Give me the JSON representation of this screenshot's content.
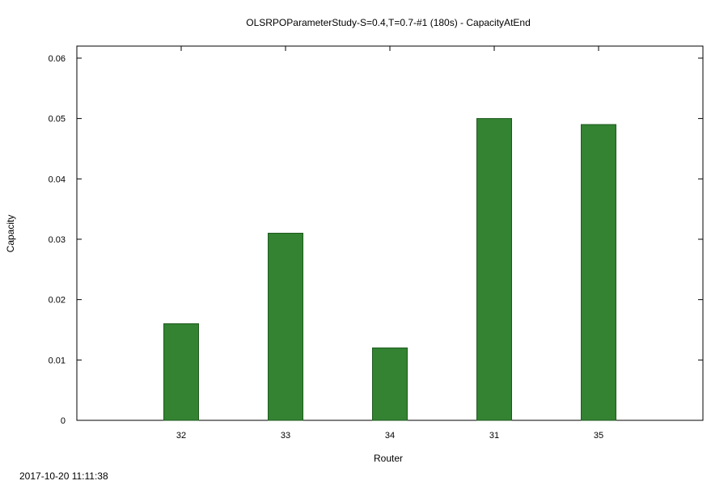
{
  "chart_data": {
    "type": "bar",
    "title": "OLSRPOParameterStudy-S=0.4,T=0.7-#1 (180s) - CapacityAtEnd",
    "xlabel": "Router",
    "ylabel": "Capacity",
    "categories": [
      "32",
      "33",
      "34",
      "31",
      "35"
    ],
    "values": [
      0.016,
      0.031,
      0.012,
      0.05,
      0.049
    ],
    "ylim": [
      0,
      0.062
    ],
    "yticks": [
      "0",
      "0.01",
      "0.02",
      "0.03",
      "0.04",
      "0.05",
      "0.06"
    ],
    "grid": false,
    "legend": "none",
    "bar_color": "#338332",
    "bar_edge_color": "#1e5a1e"
  },
  "footer": {
    "timestamp": "2017-10-20 11:11:38"
  }
}
